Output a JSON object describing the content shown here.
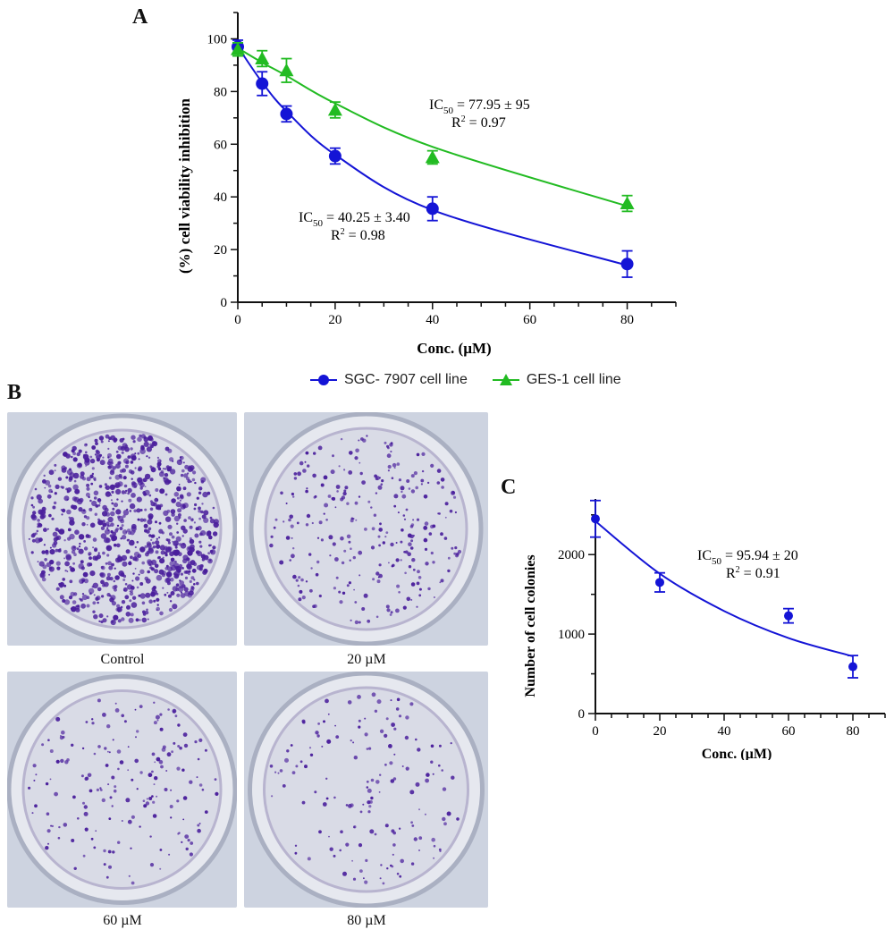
{
  "panels": {
    "a": "A",
    "b": "B",
    "c": "C"
  },
  "colors": {
    "sgc": "#1414d6",
    "ges": "#22bb22",
    "plate_bg": "#cdd3e0",
    "stain": "#4a1f9c"
  },
  "legend": {
    "sgc_label": "SGC- 7907 cell line",
    "ges_label": "GES-1 cell line"
  },
  "chart_data": [
    {
      "type": "line",
      "panel": "A",
      "ylabel": "(%) cell viability inhibition",
      "xlabel": "Conc. (µM)",
      "xlim": [
        0,
        90
      ],
      "ylim": [
        0,
        110
      ],
      "xticks": [
        0,
        20,
        40,
        60,
        80
      ],
      "yticks": [
        0,
        20,
        40,
        60,
        80,
        100
      ],
      "series": [
        {
          "name": "SGC- 7907 cell line",
          "marker": "circle",
          "x": [
            0,
            5,
            10,
            20,
            40,
            80
          ],
          "y": [
            97,
            83,
            71.5,
            55.5,
            35.5,
            14.5
          ],
          "err": [
            2.5,
            4.5,
            3,
            3,
            4.5,
            5
          ],
          "fit": [
            97,
            83.5,
            72.5,
            56,
            35,
            14
          ],
          "annotation": {
            "ic_label": "IC",
            "ic_sub": "50",
            "ic_value": " = 40.25 ± 3.40",
            "r2_label": "R",
            "r2_sup": "2",
            "r2_value": " = 0.98"
          }
        },
        {
          "name": "GES-1 cell line",
          "marker": "triangle",
          "x": [
            0,
            5,
            10,
            20,
            40,
            80
          ],
          "y": [
            96,
            92.5,
            88,
            73,
            55,
            37.5
          ],
          "err": [
            2.5,
            3,
            4.5,
            3,
            2.5,
            3
          ],
          "fit": [
            96.5,
            91,
            86,
            75.5,
            59,
            36.5
          ],
          "annotation": {
            "ic_label": "IC",
            "ic_sub": "50",
            "ic_value": " = 77.95 ± 95",
            "r2_label": "R",
            "r2_sup": "2",
            "r2_value": " = 0.97"
          }
        }
      ]
    },
    {
      "type": "scatter",
      "panel": "C",
      "ylabel": "Number of cell colonies",
      "xlabel": "Conc. (µM)",
      "xlim": [
        0,
        90
      ],
      "ylim": [
        0,
        2700
      ],
      "xticks": [
        0,
        20,
        40,
        60,
        80
      ],
      "yticks": [
        0,
        1000,
        2000
      ],
      "series": [
        {
          "name": "SGC- 7907 cell line",
          "x": [
            0,
            20,
            60,
            80
          ],
          "y": [
            2450,
            1650,
            1230,
            590
          ],
          "err": [
            230,
            120,
            90,
            140
          ],
          "fit": [
            2420,
            1760,
            1290,
            950,
            720
          ],
          "fit_x": [
            0,
            20,
            40,
            60,
            80
          ],
          "annotation": {
            "ic_label": "IC",
            "ic_sub": "50",
            "ic_value": " = 95.94 ± 20",
            "r2_label": "R",
            "r2_sup": "2",
            "r2_value": " = 0.91"
          }
        }
      ]
    }
  ],
  "plates": [
    {
      "caption": "Control",
      "density": 1.0
    },
    {
      "caption": "20 µM",
      "density": 0.3
    },
    {
      "caption": "60 µM",
      "density": 0.2
    },
    {
      "caption": "80 µM",
      "density": 0.17
    }
  ]
}
